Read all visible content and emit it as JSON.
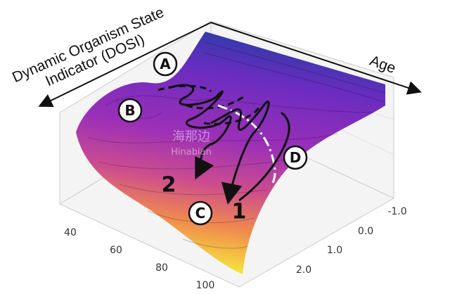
{
  "axes": {
    "dosi_label": [
      "Dynamic Organism State",
      "Indicator (DOSI)"
    ],
    "age_label": "Age",
    "left_ticks": [
      "40",
      "60",
      "80",
      "100"
    ],
    "right_ticks": [
      "-1.0",
      "0.0",
      "1.0",
      "2.0"
    ]
  },
  "markers": {
    "A": "A",
    "B": "B",
    "C": "C",
    "D": "D"
  },
  "paths": {
    "one": "1",
    "two": "2"
  },
  "watermark": {
    "chinese": "海那边",
    "latin": "Hinabian"
  }
}
